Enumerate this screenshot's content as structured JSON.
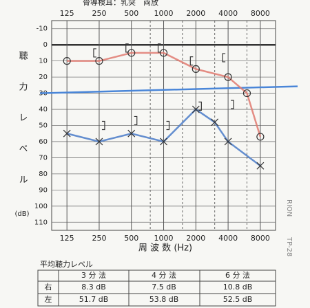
{
  "chart_data": {
    "type": "audiogram",
    "header": "骨導検耳：乳突　両放",
    "y_label": "聴力レベル",
    "y_unit": "(dB)",
    "x_label": "周 波 数 (Hz)",
    "xscale": "log",
    "xlim": [
      90,
      11100
    ],
    "xticks": [
      125,
      250,
      500,
      1000,
      2000,
      4000,
      8000
    ],
    "xticks_minor": [
      750,
      1500,
      3000,
      6000
    ],
    "ylim": [
      -15,
      115
    ],
    "yinverted": true,
    "yticks": [
      -10,
      0,
      10,
      20,
      30,
      40,
      50,
      60,
      70,
      80,
      90,
      100,
      110
    ],
    "grid": true,
    "series": [
      {
        "name": "右 気導",
        "marker": "circle",
        "color": "#e07a70",
        "x": [
          125,
          250,
          500,
          1000,
          2000,
          4000,
          6000,
          8000
        ],
        "values": [
          10,
          10,
          5,
          5,
          15,
          20,
          30,
          57
        ]
      },
      {
        "name": "左 気導",
        "marker": "x",
        "color": "#4a7bc8",
        "x": [
          125,
          250,
          500,
          1000,
          2000,
          3000,
          4000,
          8000
        ],
        "values": [
          55,
          60,
          55,
          60,
          40,
          48,
          60,
          75
        ]
      },
      {
        "name": "右 骨導",
        "marker": "bracket-left",
        "color": "#333333",
        "x": [
          250,
          500,
          1000,
          2000,
          4000
        ],
        "values": [
          5,
          2,
          2,
          10,
          8
        ]
      },
      {
        "name": "左 骨導",
        "marker": "bracket-right",
        "color": "#333333",
        "x": [
          250,
          500,
          1000,
          2000,
          4000
        ],
        "values": [
          50,
          47,
          50,
          38,
          37
        ]
      }
    ],
    "hline": {
      "value": 30,
      "color": "#4a86d8"
    },
    "side_texts": [
      "RION",
      "TP-28"
    ]
  },
  "table": {
    "title": "平均聴力レベル",
    "header": [
      "3 分 法",
      "4 分 法",
      "6 分 法"
    ],
    "rows": [
      [
        "右",
        "8.3 dB",
        "7.5 dB",
        "10.8 dB"
      ],
      [
        "左",
        "51.7 dB",
        "53.8 dB",
        "52.5 dB"
      ]
    ]
  }
}
